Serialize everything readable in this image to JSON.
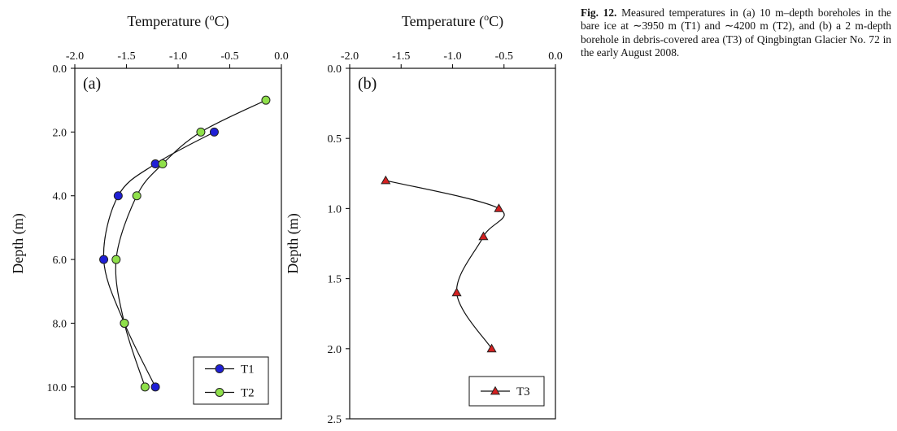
{
  "caption": {
    "label": "Fig. 12.",
    "text": "Measured temperatures in (a) 10 m–depth boreholes in the bare ice at ∼3950 m (T1) and ∼4200 m (T2), and (b) a 2 m-depth borehole in debris-covered area (T3) of Qingbingtan Glacier No. 72 in the early August 2008."
  },
  "chart_data": [
    {
      "type": "line",
      "panel_label": "(a)",
      "title": "",
      "xlabel": "Temperature (°C)",
      "ylabel": "Depth (m)",
      "x_axis_position": "top",
      "y_inverted": true,
      "xlim": [
        -2.0,
        0.0
      ],
      "ylim": [
        0.0,
        11.0
      ],
      "xticks": [
        -2.0,
        -1.5,
        -1.0,
        -0.5,
        0.0
      ],
      "xtick_labels": [
        "-2.0",
        "-1.5",
        "-1.0",
        "-0.5",
        "0.0"
      ],
      "yticks": [
        0,
        2,
        4,
        6,
        8,
        10
      ],
      "ytick_labels": [
        "0.0",
        "2.0",
        "4.0",
        "6.0",
        "8.0",
        "10.0"
      ],
      "grid": false,
      "legend_position": "bottom-right",
      "series": [
        {
          "name": "T1",
          "marker": "circle",
          "color": "#1f1fd6",
          "points": [
            [
              -0.65,
              2.0
            ],
            [
              -1.22,
              3.0
            ],
            [
              -1.58,
              4.0
            ],
            [
              -1.72,
              6.0
            ],
            [
              -1.52,
              8.0
            ],
            [
              -1.22,
              10.0
            ]
          ]
        },
        {
          "name": "T2",
          "marker": "circle",
          "color": "#8fe04a",
          "points": [
            [
              -0.15,
              1.0
            ],
            [
              -0.78,
              2.0
            ],
            [
              -1.15,
              3.0
            ],
            [
              -1.4,
              4.0
            ],
            [
              -1.6,
              6.0
            ],
            [
              -1.52,
              8.0
            ],
            [
              -1.32,
              10.0
            ]
          ]
        }
      ]
    },
    {
      "type": "line",
      "panel_label": "(b)",
      "title": "",
      "xlabel": "Temperature (°C)",
      "ylabel": "Depth (m)",
      "x_axis_position": "top",
      "y_inverted": true,
      "xlim": [
        -2.0,
        0.0
      ],
      "ylim": [
        0.0,
        2.5
      ],
      "xticks": [
        -2.0,
        -1.5,
        -1.0,
        -0.5,
        0.0
      ],
      "xtick_labels": [
        "-2.0",
        "-1.5",
        "-1.0",
        "-0.5",
        "0.0"
      ],
      "yticks": [
        0.0,
        0.5,
        1.0,
        1.5,
        2.0,
        2.5
      ],
      "ytick_labels": [
        "0.0",
        "0.5",
        "1.0",
        "1.5",
        "2.0",
        "2.5"
      ],
      "grid": false,
      "legend_position": "bottom-right",
      "series": [
        {
          "name": "T3",
          "marker": "triangle",
          "color": "#d42020",
          "points": [
            [
              -1.65,
              0.8
            ],
            [
              -0.55,
              1.0
            ],
            [
              -0.7,
              1.2
            ],
            [
              -0.96,
              1.6
            ],
            [
              -0.62,
              2.0
            ]
          ]
        }
      ]
    }
  ]
}
